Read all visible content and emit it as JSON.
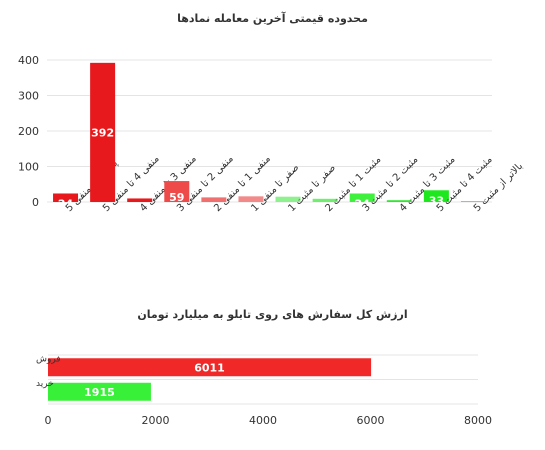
{
  "chart_data": [
    {
      "type": "bar",
      "title": "محدوده قیمتی آخرین معامله نمادها",
      "categories": [
        "پایینتر از منفی 5",
        "منفی 4 تا منفی 5",
        "منفی 3 تا منفی 4",
        "منفی 2 تا منفی 3",
        "منفی 1 تا منفی 2",
        "صفر تا منفی 1",
        "صفر تا مثبت 1",
        "مثبت 1 تا مثبت 2",
        "مثبت 2 تا مثبت 3",
        "مثبت 3 تا مثبت 4",
        "مثبت 4 تا مثبت 5",
        "بالاتر از مثبت 5"
      ],
      "values": [
        24,
        392,
        10,
        59,
        13,
        16,
        15,
        9,
        24,
        5,
        33,
        2
      ],
      "value_labels": [
        "24",
        "392",
        "10",
        "59",
        "13",
        "16",
        "15",
        "9",
        "24",
        "",
        "33",
        ""
      ],
      "colors": [
        "#e8191d",
        "#e8191d",
        "#e8191d",
        "#ef4a4a",
        "#f07070",
        "#f28a8a",
        "#8ff08f",
        "#6ef06e",
        "#3ff03f",
        "#2ee82e",
        "#1de81d",
        "#1de81d"
      ],
      "ylim": [
        0,
        400
      ],
      "yticks": [
        0,
        100,
        200,
        300,
        400
      ],
      "grid": true,
      "legend": "none"
    },
    {
      "type": "bar",
      "orientation": "horizontal",
      "title": "ارزش کل سفارش های روی تابلو به میلیارد تومان",
      "categories": [
        "فروش",
        "خرید"
      ],
      "values": [
        6011,
        1915
      ],
      "colors": [
        "#f02828",
        "#39f039"
      ],
      "xlim": [
        0,
        8000
      ],
      "xticks": [
        0,
        2000,
        4000,
        6000,
        8000
      ],
      "grid": true,
      "legend": "none"
    }
  ]
}
